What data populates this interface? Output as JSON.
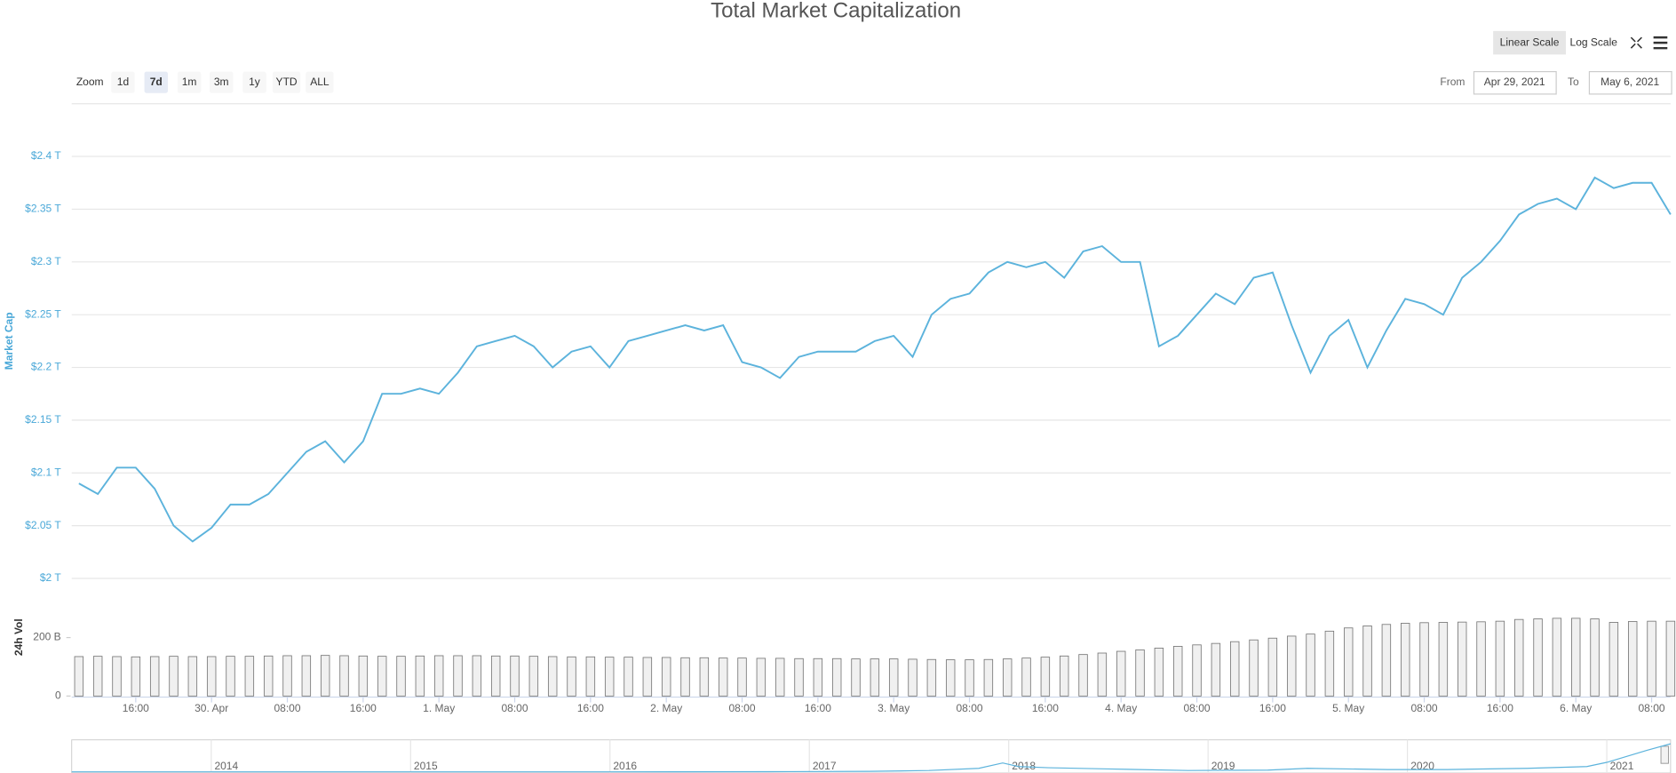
{
  "toolbar": {
    "zoom_label": "Zoom",
    "zoom_buttons": [
      "1d",
      "7d",
      "1m",
      "3m",
      "1y",
      "YTD",
      "ALL"
    ],
    "zoom_selected": 1,
    "scale_buttons": [
      "Linear Scale",
      "Log Scale"
    ],
    "from_label": "From",
    "from": "Apr 29, 2021",
    "to_label": "To",
    "to": "May 6, 2021"
  },
  "chart_data": [
    {
      "type": "line",
      "title": "Total Market Capitalization",
      "ylabel": "Market Cap",
      "color": "#5cb3dc",
      "log_scale": false,
      "grid": true,
      "categories": [
        null,
        null,
        null,
        "16:00",
        null,
        null,
        null,
        "30. Apr",
        null,
        null,
        null,
        "08:00",
        null,
        null,
        null,
        "16:00",
        null,
        null,
        null,
        "1. May",
        null,
        null,
        null,
        "08:00",
        null,
        null,
        null,
        "16:00",
        null,
        null,
        null,
        "2. May",
        null,
        null,
        null,
        "08:00",
        null,
        null,
        null,
        "16:00",
        null,
        null,
        null,
        "3. May",
        null,
        null,
        null,
        "08:00",
        null,
        null,
        null,
        "16:00",
        null,
        null,
        null,
        "4. May",
        null,
        null,
        null,
        "08:00",
        null,
        null,
        null,
        "16:00",
        null,
        null,
        null,
        "5. May",
        null,
        null,
        null,
        "08:00",
        null,
        null,
        null,
        "16:00",
        null,
        null,
        null,
        "6. May",
        null,
        null,
        null,
        "08:00",
        null
      ],
      "values": [
        2.09,
        2.08,
        2.105,
        2.105,
        2.085,
        2.05,
        2.035,
        2.048,
        2.07,
        2.07,
        2.08,
        2.1,
        2.12,
        2.13,
        2.11,
        2.13,
        2.175,
        2.175,
        2.18,
        2.175,
        2.195,
        2.22,
        2.225,
        2.23,
        2.22,
        2.2,
        2.215,
        2.22,
        2.2,
        2.225,
        2.23,
        2.235,
        2.24,
        2.235,
        2.24,
        2.205,
        2.2,
        2.19,
        2.21,
        2.215,
        2.215,
        2.215,
        2.225,
        2.23,
        2.21,
        2.25,
        2.265,
        2.27,
        2.29,
        2.3,
        2.295,
        2.3,
        2.285,
        2.31,
        2.315,
        2.3,
        2.3,
        2.22,
        2.23,
        2.25,
        2.27,
        2.26,
        2.285,
        2.29,
        2.24,
        2.195,
        2.23,
        2.245,
        2.2,
        2.235,
        2.265,
        2.26,
        2.25,
        2.285,
        2.3,
        2.32,
        2.345,
        2.355,
        2.36,
        2.35,
        2.38,
        2.37,
        2.375,
        2.375,
        2.345
      ],
      "ylim": [
        2,
        2.45
      ],
      "yticks": [
        {
          "value": 2,
          "label": "$2 T"
        },
        {
          "value": 2.05,
          "label": "$2.05 T"
        },
        {
          "value": 2.1,
          "label": "$2.1 T"
        },
        {
          "value": 2.15,
          "label": "$2.15 T"
        },
        {
          "value": 2.2,
          "label": "$2.2 T"
        },
        {
          "value": 2.25,
          "label": "$2.25 T"
        },
        {
          "value": 2.3,
          "label": "$2.3 T"
        },
        {
          "value": 2.35,
          "label": "$2.35 T"
        },
        {
          "value": 2.4,
          "label": "$2.4 T"
        }
      ]
    },
    {
      "type": "bar",
      "ylabel": "24h Vol",
      "color": "#777777",
      "values": [
        135,
        136,
        135,
        134,
        135,
        136,
        135,
        135,
        136,
        136,
        137,
        138,
        138,
        139,
        138,
        137,
        136,
        136,
        137,
        138,
        138,
        138,
        137,
        137,
        136,
        135,
        134,
        134,
        133,
        133,
        132,
        132,
        131,
        131,
        130,
        130,
        129,
        129,
        128,
        128,
        128,
        127,
        127,
        127,
        126,
        125,
        124,
        124,
        125,
        127,
        130,
        133,
        137,
        142,
        147,
        153,
        158,
        164,
        170,
        175,
        180,
        186,
        192,
        198,
        205,
        212,
        222,
        233,
        240,
        245,
        249,
        251,
        252,
        253,
        254,
        256,
        262,
        264,
        266,
        266,
        264,
        252,
        255,
        256,
        256
      ],
      "ylim": [
        0,
        300
      ],
      "yticks": [
        0,
        {
          "value": 200,
          "label": "200 B"
        }
      ]
    },
    {
      "type": "line",
      "color": "#5cb3dc",
      "x": [
        2013.3,
        2014,
        2015,
        2016,
        2016.8,
        2017.3,
        2017.6,
        2017.85,
        2017.97,
        2018.05,
        2018.2,
        2018.5,
        2018.9,
        2019.3,
        2019.5,
        2019.9,
        2020.2,
        2020.6,
        2020.9,
        2021.0,
        2021.1,
        2021.2,
        2021.32
      ],
      "values": [
        0.01,
        0.01,
        0.01,
        0.01,
        0.02,
        0.05,
        0.12,
        0.3,
        0.75,
        0.45,
        0.35,
        0.25,
        0.12,
        0.15,
        0.3,
        0.2,
        0.2,
        0.3,
        0.45,
        0.8,
        1.3,
        1.8,
        2.35
      ],
      "xlim": [
        2013.3,
        2021.32
      ],
      "ylim": [
        0,
        2.5
      ],
      "xticks": [
        2014,
        2015,
        2016,
        2017,
        2018,
        2019,
        2020,
        2021
      ]
    }
  ]
}
